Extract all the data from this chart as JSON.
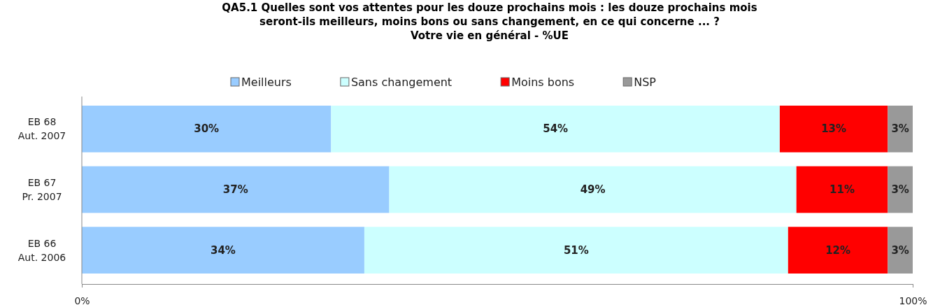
{
  "chart_data": {
    "type": "bar",
    "orientation": "horizontal",
    "stacked": true,
    "title": "QA5.1 Quelles sont vos attentes pour les douze prochains mois : les douze prochains mois\nseront-ils meilleurs, moins bons ou sans changement, en ce qui concerne ... ?",
    "subtitle": "Votre vie en général - %UE",
    "categories": [
      "EB 68\nAut. 2007",
      "EB 67\nPr. 2007",
      "EB 66\nAut. 2006"
    ],
    "series": [
      {
        "name": "Meilleurs",
        "color": "#99ccff",
        "values": [
          30,
          37,
          34
        ],
        "value_labels": [
          "30%",
          "37%",
          "34%"
        ]
      },
      {
        "name": "Sans changement",
        "color": "#ccffff",
        "values": [
          54,
          49,
          51
        ],
        "value_labels": [
          "54%",
          "49%",
          "51%"
        ]
      },
      {
        "name": "Moins bons",
        "color": "#ff0000",
        "values": [
          13,
          11,
          12
        ],
        "value_labels": [
          "13%",
          "11%",
          "12%"
        ]
      },
      {
        "name": "NSP",
        "color": "#999999",
        "values": [
          3,
          3,
          3
        ],
        "value_labels": [
          "3%",
          "3%",
          "3%"
        ]
      }
    ],
    "xlim": [
      0,
      100
    ],
    "xticks": [
      {
        "value": 0,
        "label": "0%"
      },
      {
        "value": 100,
        "label": "100%"
      }
    ],
    "legend": "top",
    "grid": false
  }
}
